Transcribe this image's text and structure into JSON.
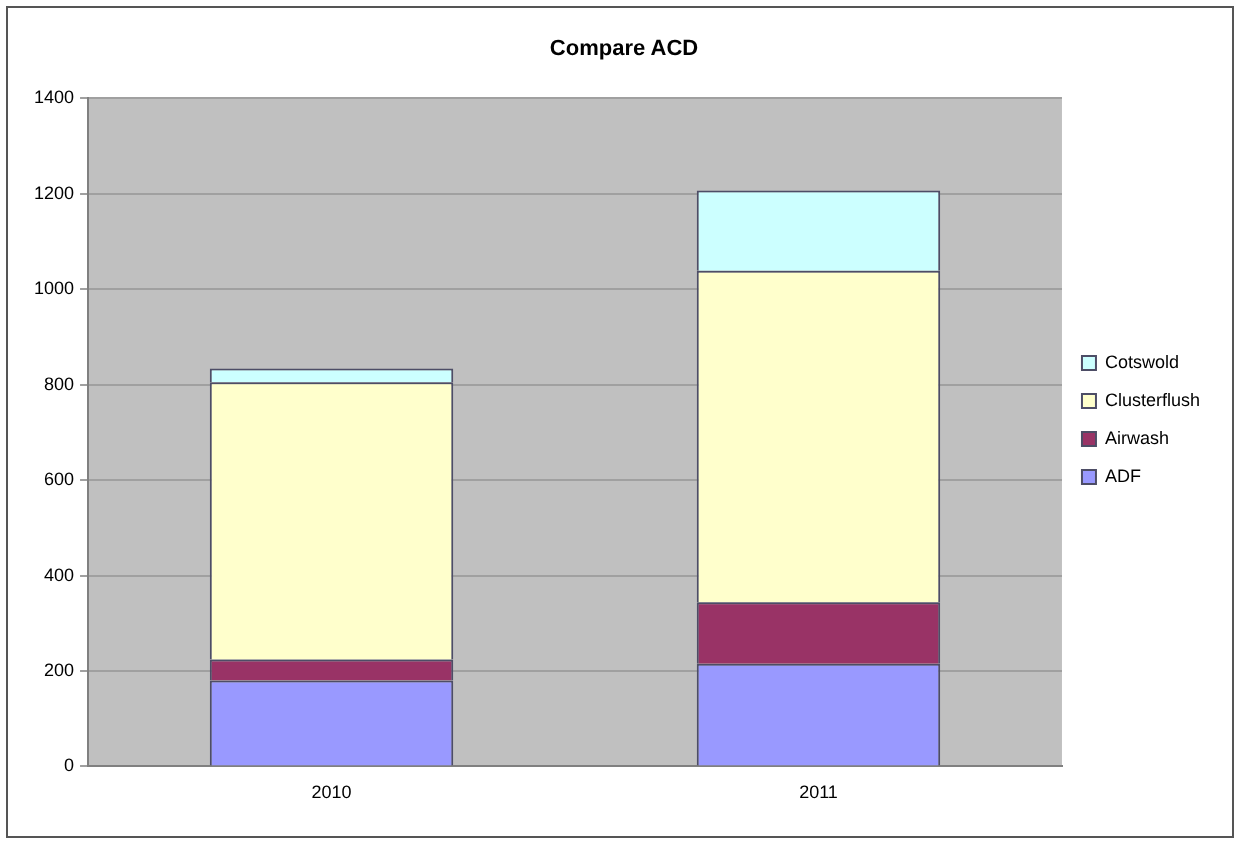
{
  "chart_data": {
    "type": "bar",
    "title": "Compare ACD",
    "categories": [
      "2010",
      "2011"
    ],
    "stacked": true,
    "series": [
      {
        "name": "ADF",
        "color": "#9999ff",
        "values": [
          180,
          215
        ]
      },
      {
        "name": "Airwash",
        "color": "#993366",
        "values": [
          44,
          129
        ]
      },
      {
        "name": "Clusterflush",
        "color": "#ffffcc",
        "values": [
          581,
          695
        ]
      },
      {
        "name": "Cotswold",
        "color": "#ccffff",
        "values": [
          29,
          168
        ]
      }
    ],
    "ylim": [
      0,
      1400
    ],
    "yticks": [
      0,
      200,
      400,
      600,
      800,
      1000,
      1200,
      1400
    ],
    "grid": "y",
    "legend": "right"
  }
}
